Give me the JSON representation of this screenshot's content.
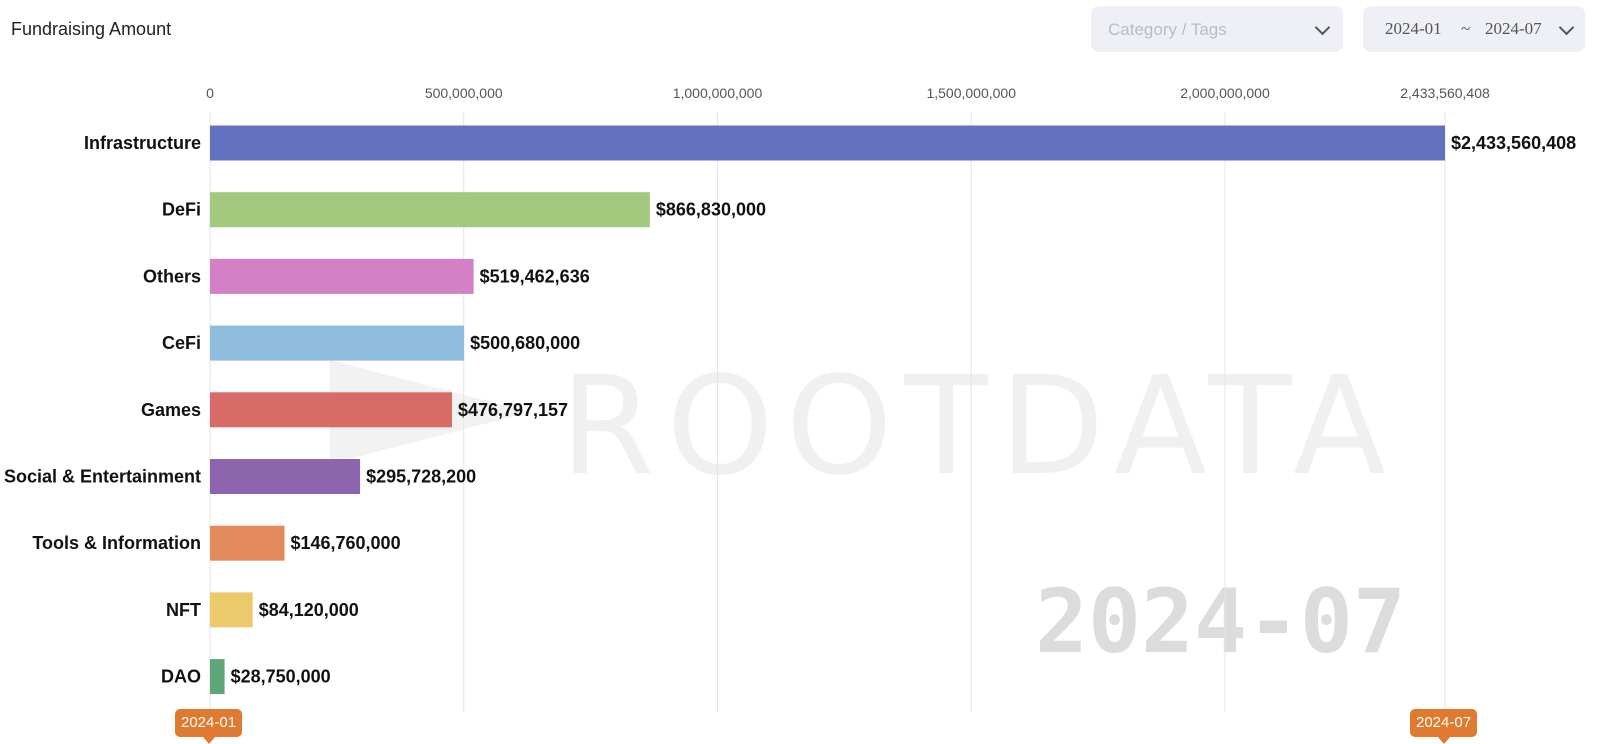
{
  "header": {
    "title": "Fundraising Amount",
    "category_placeholder": "Category / Tags",
    "date_from": "2024-01",
    "date_separator": "~",
    "date_to": "2024-07"
  },
  "watermark": {
    "brand": "ROOTDATA",
    "period": "2024-07"
  },
  "timeline": {
    "start": "2024-01",
    "end": "2024-07"
  },
  "colors": [
    "#6171c0",
    "#a2c97d",
    "#d380c6",
    "#8fbcdc",
    "#d86a68",
    "#8d65ad",
    "#e38a5c",
    "#ecc96b",
    "#5fa57a"
  ],
  "chart_data": {
    "type": "bar",
    "orientation": "horizontal",
    "title": "Fundraising Amount",
    "categories": [
      "Infrastructure",
      "DeFi",
      "Others",
      "CeFi",
      "Games",
      "Social & Entertainment",
      "Tools & Information",
      "NFT",
      "DAO"
    ],
    "values": [
      2433560408,
      866830000,
      519462636,
      500680000,
      476797157,
      295728200,
      146760000,
      84120000,
      28750000
    ],
    "value_labels": [
      "$2,433,560,408",
      "$866,830,000",
      "$519,462,636",
      "$500,680,000",
      "$476,797,157",
      "$295,728,200",
      "$146,760,000",
      "$84,120,000",
      "$28,750,000"
    ],
    "xticks": [
      0,
      500000000,
      1000000000,
      1500000000,
      2000000000,
      2433560408
    ],
    "xtick_labels": [
      "0",
      "500,000,000",
      "1,000,000,000",
      "1,500,000,000",
      "2,000,000,000",
      "2,433,560,408"
    ],
    "xlim": [
      0,
      2433560408
    ],
    "grid": true
  }
}
